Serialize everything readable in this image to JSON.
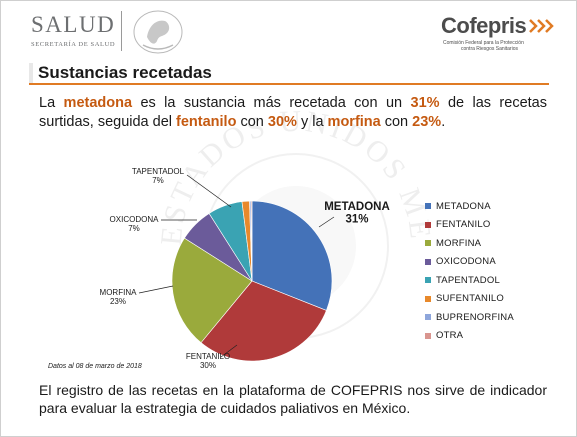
{
  "header": {
    "salud_logo": "SALUD",
    "salud_subtitle": "SECRETARÍA DE SALUD",
    "cofepris_logo": "Cofepris",
    "cofepris_subtitle_1": "Comisión Federal para la Protección",
    "cofepris_subtitle_2": "contra Riesgos Sanitarios",
    "watermark_text": "ESTADOS UNIDOS MEXICANOS"
  },
  "slide": {
    "title": "Sustancias recetadas",
    "intro": {
      "t1": "La ",
      "h1": "metadona",
      "t2": " es la sustancia más recetada con un ",
      "h2": "31%",
      "t3": " de las recetas surtidas, seguida del ",
      "h3": "fentanilo",
      "t4": " con ",
      "h4": "30%",
      "t5": " y la ",
      "h5": "morfina",
      "t6": " con ",
      "h6": "23%",
      "t7": "."
    },
    "data_note": "Datos al 08 de marzo de 2018",
    "closing": "El registro de las recetas en la plataforma de COFEPRIS nos sirve de indicador para evaluar la estrategia de cuidados paliativos en México."
  },
  "colors": {
    "accent": "#e07b24",
    "highlight": "#c55a11"
  },
  "chart_data": {
    "type": "pie",
    "title": "",
    "unit": "%",
    "slices": [
      {
        "label": "METADONA",
        "value": 31,
        "value_label": "31%",
        "color": "#4472b8"
      },
      {
        "label": "FENTANILO",
        "value": 30,
        "value_label": "30%",
        "color": "#b03a3a"
      },
      {
        "label": "MORFINA",
        "value": 23,
        "value_label": "23%",
        "color": "#9aaa3c"
      },
      {
        "label": "OXICODONA",
        "value": 7,
        "value_label": "7%",
        "color": "#6b5b9a"
      },
      {
        "label": "TAPENTADOL",
        "value": 7,
        "value_label": "7%",
        "color": "#3aa3b3"
      },
      {
        "label": "SUFENTANILO",
        "value": 1.5,
        "value_label": "",
        "color": "#e8892b"
      },
      {
        "label": "BUPRENORFINA",
        "value": 0.3,
        "value_label": "",
        "color": "#8ea6db"
      },
      {
        "label": "OTRA",
        "value": 0.2,
        "value_label": "",
        "color": "#d9958f"
      }
    ],
    "start_angle_deg": 0,
    "direction": "clockwise",
    "legend_position": "right"
  }
}
